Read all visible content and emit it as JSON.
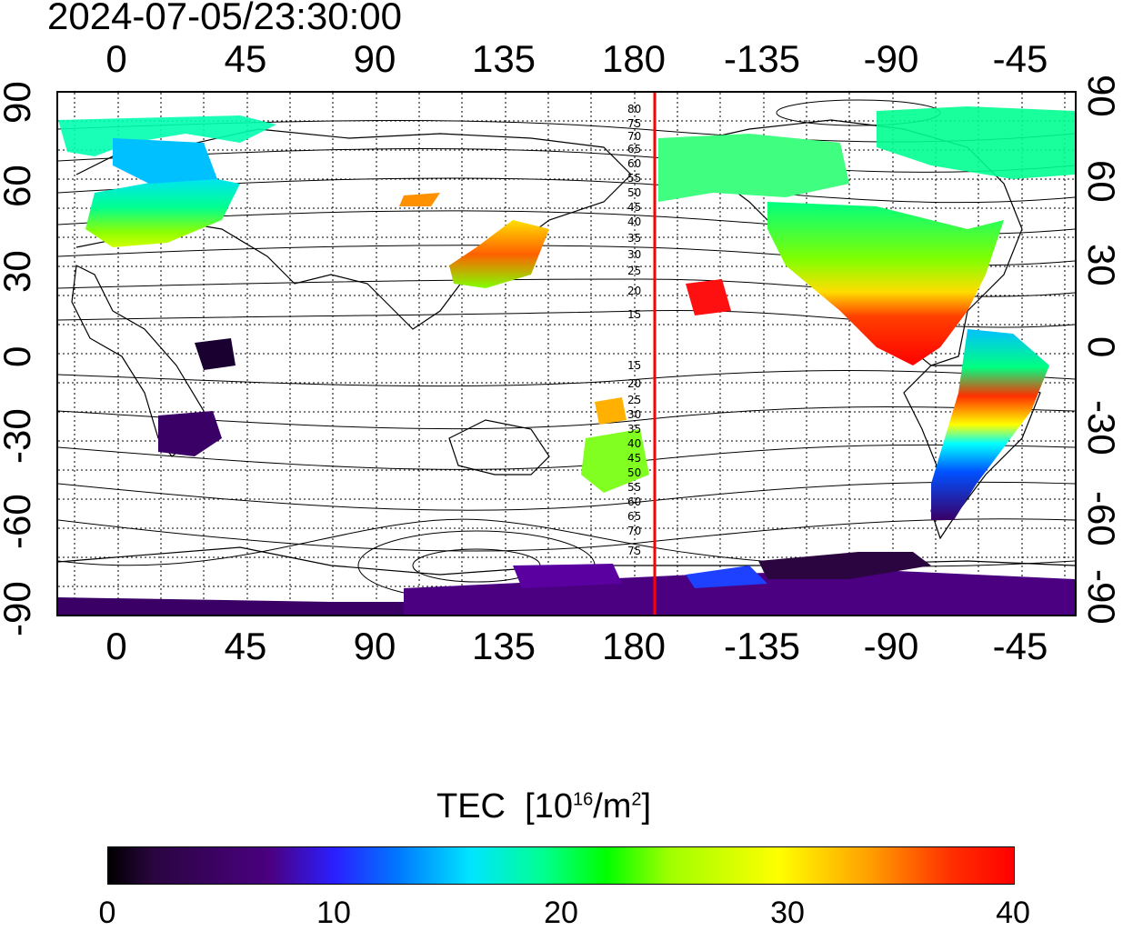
{
  "timestamp": "2024-07-05/23:30:00",
  "x_ticks": [
    "0",
    "45",
    "90",
    "135",
    "180",
    "-135",
    "-90",
    "-45"
  ],
  "y_ticks": [
    "90",
    "60",
    "30",
    "0",
    "-30",
    "-60",
    "-90"
  ],
  "colorbar": {
    "title": "TEC",
    "unit_prefix": "[10",
    "unit_exp": "16",
    "unit_mid": "/m",
    "unit_exp2": "2",
    "unit_suffix": "]",
    "labels": [
      "0",
      "10",
      "20",
      "30",
      "40"
    ],
    "min": 0,
    "max": 40
  },
  "contour_labels_north": [
    "80",
    "75",
    "70",
    "65",
    "60",
    "55",
    "50",
    "45",
    "40",
    "35",
    "30",
    "25",
    "20",
    "15"
  ],
  "contour_labels_south": [
    "15",
    "20",
    "25",
    "30",
    "35",
    "40",
    "45",
    "50",
    "55",
    "60",
    "65",
    "70",
    "75"
  ],
  "colors": {
    "marker_line": "#ff0000",
    "frame": "#000000"
  }
}
